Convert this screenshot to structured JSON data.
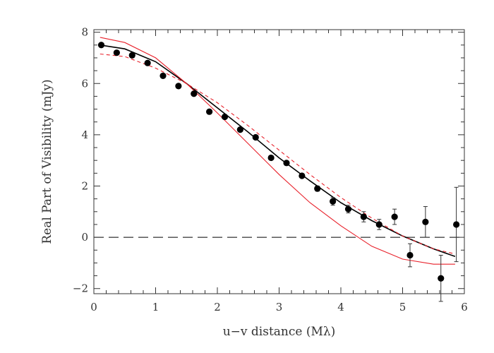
{
  "chart_data": {
    "type": "scatter",
    "xlabel": "u−v distance (Mλ)",
    "ylabel": "Real Part of Visibility (mJy)",
    "xlim": [
      0,
      6
    ],
    "ylim": [
      -2.2,
      8.1
    ],
    "x_ticks": [
      "0",
      "1",
      "2",
      "3",
      "4",
      "5",
      "6"
    ],
    "y_ticks": [
      "−2",
      "0",
      "2",
      "4",
      "6",
      "8"
    ],
    "grid": false,
    "colors": {
      "data": "#000000",
      "model_black": "#000000",
      "model_red": "#e8202a",
      "zero_line": "#000000"
    },
    "series": [
      {
        "kind": "points",
        "x": [
          0.12,
          0.37,
          0.62,
          0.87,
          1.12,
          1.37,
          1.62,
          1.87,
          2.12,
          2.37,
          2.62,
          2.87,
          3.12,
          3.37,
          3.62,
          3.87,
          4.12,
          4.37,
          4.62,
          4.87,
          5.12,
          5.37,
          5.62,
          5.87
        ],
        "y": [
          7.5,
          7.2,
          7.1,
          6.8,
          6.3,
          5.9,
          5.6,
          4.9,
          4.7,
          4.2,
          3.9,
          3.1,
          2.9,
          2.4,
          1.9,
          1.4,
          1.1,
          0.8,
          0.5,
          0.8,
          -0.7,
          0.6,
          -1.6,
          0.5
        ],
        "yerr": [
          0.05,
          0.05,
          0.05,
          0.05,
          0.05,
          0.05,
          0.05,
          0.05,
          0.05,
          0.05,
          0.05,
          0.05,
          0.05,
          0.05,
          0.1,
          0.15,
          0.15,
          0.2,
          0.2,
          0.3,
          0.45,
          0.6,
          0.9,
          1.45
        ]
      },
      {
        "kind": "line",
        "style": "solid-black",
        "x": [
          0.1,
          0.5,
          1.0,
          1.5,
          2.0,
          2.5,
          3.0,
          3.5,
          4.0,
          4.5,
          5.0,
          5.5,
          5.85
        ],
        "y": [
          7.5,
          7.35,
          6.85,
          6.0,
          5.05,
          4.1,
          3.1,
          2.2,
          1.35,
          0.65,
          0.05,
          -0.45,
          -0.75
        ]
      },
      {
        "kind": "line",
        "style": "solid-red",
        "x": [
          0.1,
          0.5,
          1.0,
          1.5,
          2.0,
          2.5,
          3.0,
          3.5,
          4.0,
          4.5,
          5.0,
          5.5,
          5.85
        ],
        "y": [
          7.8,
          7.6,
          7.0,
          6.0,
          4.85,
          3.65,
          2.45,
          1.35,
          0.45,
          -0.35,
          -0.85,
          -1.05,
          -1.05
        ]
      },
      {
        "kind": "line",
        "style": "dashed-red",
        "x": [
          0.1,
          0.5,
          1.0,
          1.5,
          2.0,
          2.5,
          3.0,
          3.5,
          4.0,
          4.5,
          5.0,
          5.5,
          5.85
        ],
        "y": [
          7.15,
          7.05,
          6.6,
          6.0,
          5.25,
          4.35,
          3.4,
          2.45,
          1.55,
          0.75,
          0.05,
          -0.45,
          -0.65
        ]
      },
      {
        "kind": "line",
        "style": "long-dashed-black",
        "x": [
          0,
          6
        ],
        "y": [
          0,
          0
        ]
      }
    ]
  }
}
